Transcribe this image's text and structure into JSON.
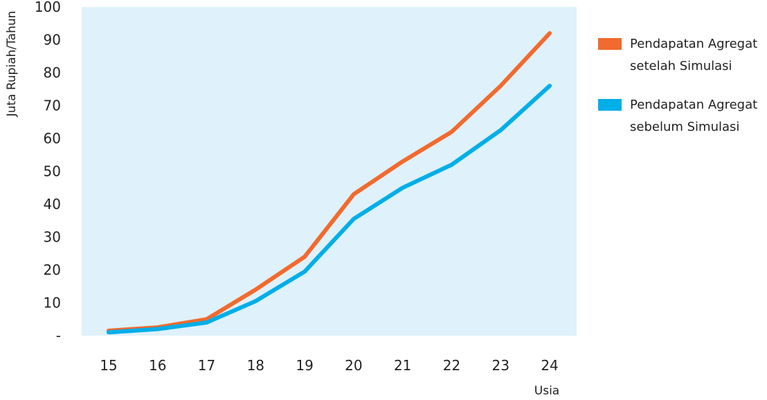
{
  "chart_data": {
    "type": "line",
    "xlabel": "Usia",
    "ylabel": "Juta Rupiah/Tahun",
    "x": [
      15,
      16,
      17,
      18,
      19,
      20,
      21,
      22,
      23,
      24
    ],
    "xlim": [
      14.45,
      24.55
    ],
    "ylim": [
      0,
      100
    ],
    "y_ticks": [
      0,
      10,
      20,
      30,
      40,
      50,
      60,
      70,
      80,
      90,
      100
    ],
    "y_tick_labels": [
      "-",
      "10",
      "20",
      "30",
      "40",
      "50",
      "60",
      "70",
      "80",
      "90",
      "100"
    ],
    "grid": false,
    "legend_position": "right",
    "background_color": "#dff1fa",
    "series": [
      {
        "name_lines": [
          "Pendapatan Agregat",
          "setelah Simulasi"
        ],
        "color": "#f26a2e",
        "values": [
          1.5,
          2.5,
          5,
          14,
          24,
          43,
          53,
          62,
          76,
          92
        ]
      },
      {
        "name_lines": [
          "Pendapatan Agregat",
          "sebelum Simulasi"
        ],
        "color": "#00aee8",
        "values": [
          1,
          2,
          4,
          10.5,
          19.5,
          35.5,
          45,
          52,
          62.5,
          76
        ]
      }
    ]
  }
}
